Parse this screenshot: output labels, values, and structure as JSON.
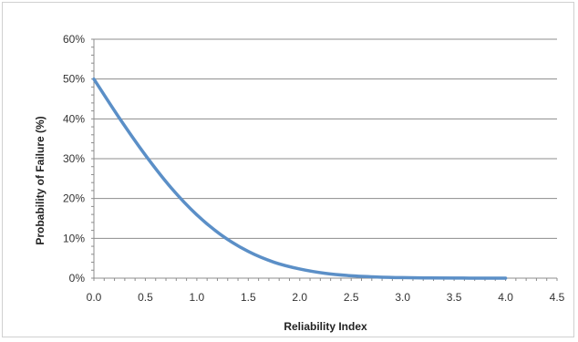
{
  "chart_data": {
    "type": "line",
    "title": "",
    "xlabel": "Reliability Index",
    "ylabel": "Probability of Failure (%)",
    "xlim": [
      0,
      4.5
    ],
    "ylim": [
      0,
      60
    ],
    "x_ticks": [
      "0.0",
      "0.5",
      "1.0",
      "1.5",
      "2.0",
      "2.5",
      "3.0",
      "3.5",
      "4.0",
      "4.5"
    ],
    "y_ticks": [
      "0%",
      "10%",
      "20%",
      "30%",
      "40%",
      "50%",
      "60%"
    ],
    "grid": "horizontal",
    "legend": "none",
    "series": [
      {
        "color": "#5b8fc7",
        "x": [
          0.0,
          0.25,
          0.5,
          0.75,
          1.0,
          1.25,
          1.5,
          1.75,
          2.0,
          2.25,
          2.5,
          2.75,
          3.0,
          3.25,
          3.5,
          3.75,
          4.0
        ],
        "y": [
          50.0,
          40.1,
          30.9,
          22.7,
          15.9,
          10.6,
          6.7,
          4.0,
          2.3,
          1.2,
          0.6,
          0.3,
          0.13,
          0.06,
          0.02,
          0.01,
          0.003
        ]
      }
    ]
  }
}
